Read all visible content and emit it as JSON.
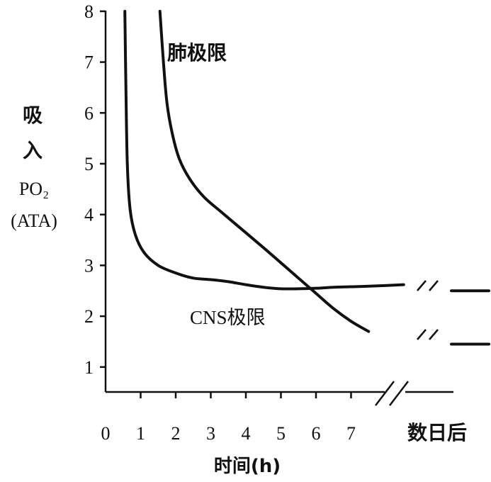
{
  "chart_data": {
    "type": "line",
    "xlabel": "时间(h)",
    "ylabel_lines": [
      "吸",
      "入",
      "PO₂",
      "(ATA)"
    ],
    "xlim": [
      0,
      8.1
    ],
    "ylim": [
      0.5,
      8
    ],
    "x_ticks": [
      "0",
      "1",
      "2",
      "3",
      "4",
      "5",
      "6",
      "7"
    ],
    "x_break_label": "数日后",
    "y_ticks": [
      "1",
      "2",
      "3",
      "4",
      "5",
      "6",
      "7",
      "8"
    ],
    "grid": false,
    "legend": "none",
    "series": [
      {
        "name": "CNS极限",
        "x": [
          0.55,
          0.58,
          0.62,
          0.7,
          0.85,
          1.1,
          1.5,
          2.0,
          2.5,
          3.0,
          3.5,
          4.0,
          4.5,
          5.0,
          5.5,
          6.0,
          6.5,
          7.0,
          7.5,
          8.5
        ],
        "y": [
          8,
          6.5,
          5.0,
          4.1,
          3.6,
          3.25,
          3.0,
          2.85,
          2.75,
          2.72,
          2.68,
          2.62,
          2.57,
          2.54,
          2.54,
          2.55,
          2.57,
          2.58,
          2.59,
          2.62
        ],
        "after_break": 2.5
      },
      {
        "name": "肺极限",
        "x": [
          1.55,
          1.65,
          1.75,
          1.9,
          2.1,
          2.4,
          2.8,
          3.3,
          3.9,
          4.5,
          5.0,
          5.5,
          6.0,
          6.5,
          7.0,
          7.5
        ],
        "y": [
          8,
          7.0,
          6.2,
          5.6,
          5.1,
          4.7,
          4.35,
          4.05,
          3.7,
          3.35,
          3.05,
          2.75,
          2.45,
          2.15,
          1.9,
          1.7
        ],
        "after_break": 1.45
      }
    ]
  }
}
